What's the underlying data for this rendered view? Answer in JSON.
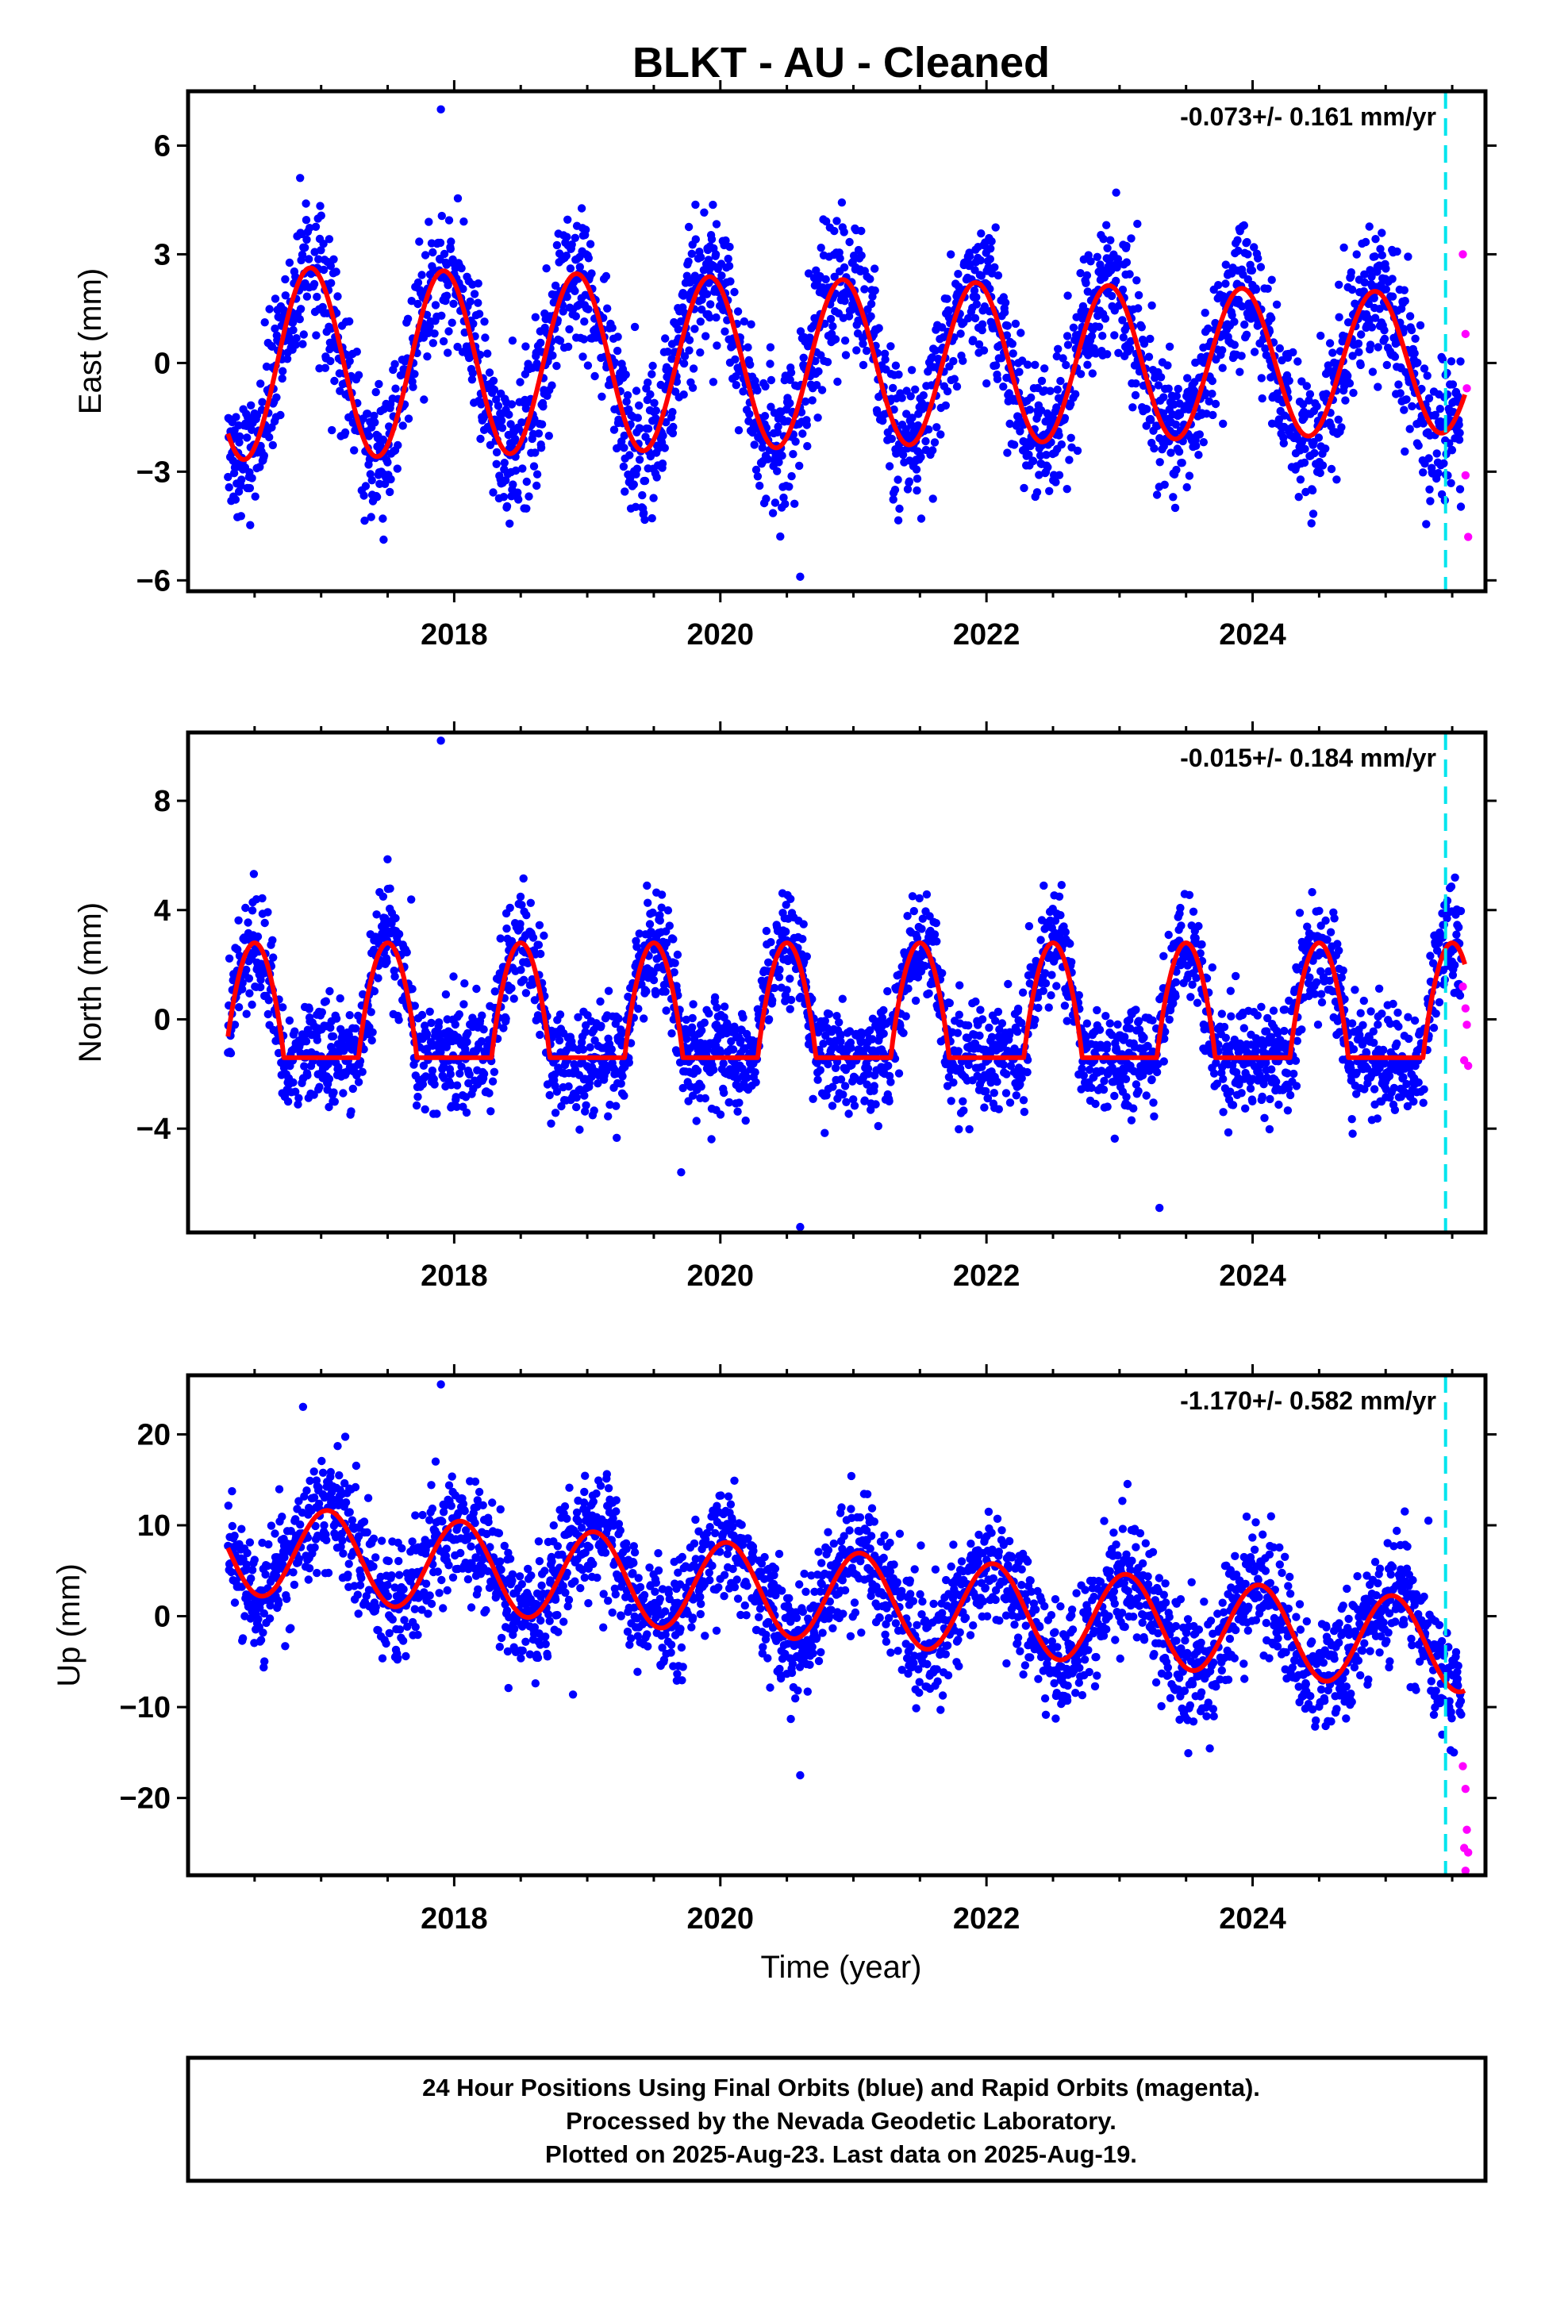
{
  "figure": {
    "title": "BLKT  - AU - Cleaned",
    "xlabel": "Time (year)",
    "footer": [
      "24 Hour Positions Using Final Orbits (blue) and Rapid Orbits (magenta).",
      "Processed by the Nevada Geodetic Laboratory.",
      "Plotted on 2025-Aug-23. Last data on 2025-Aug-19."
    ],
    "colors": {
      "final": "#0000ff",
      "rapid": "#ff00ff",
      "model": "#ff0000",
      "divider": "#00e5ee",
      "frame": "#000000"
    },
    "divider_x": 2025.45
  },
  "chart_data": [
    {
      "type": "scatter",
      "ylabel": "East (mm)",
      "rate_label": "-0.073+/- 0.161 mm/yr",
      "xlim": [
        2016.0,
        2025.75
      ],
      "ylim": [
        -6.3,
        7.5
      ],
      "xticks": [
        2018,
        2020,
        2022,
        2024
      ],
      "yticks": [
        -6,
        -3,
        0,
        3,
        6
      ],
      "yticklabels": [
        "−6",
        "−3",
        "0",
        "3",
        "6"
      ],
      "series": [
        {
          "kind": "final",
          "x_range": [
            2016.3,
            2025.57
          ],
          "amplitude": 2.8,
          "peak_phase": 0.92,
          "noise": 1.05,
          "outliers_y": [
            7.0,
            -5.9
          ]
        },
        {
          "kind": "model",
          "x_range": [
            2016.3,
            2025.6
          ],
          "amplitude": 2.7,
          "peak_phase": 0.92
        },
        {
          "kind": "rapid",
          "x": [
            2025.58,
            2025.6,
            2025.61,
            2025.6,
            2025.62
          ],
          "y": [
            3.0,
            0.8,
            -0.7,
            -3.1,
            -4.8
          ]
        }
      ]
    },
    {
      "type": "scatter",
      "ylabel": "North (mm)",
      "rate_label": "-0.015+/- 0.184 mm/yr",
      "xlim": [
        2016.0,
        2025.75
      ],
      "ylim": [
        -7.8,
        10.5
      ],
      "xticks": [
        2018,
        2020,
        2022,
        2024
      ],
      "yticks": [
        -4,
        0,
        4,
        8
      ],
      "yticklabels": [
        "−4",
        "0",
        "4",
        "8"
      ],
      "series": [
        {
          "kind": "final",
          "x_range": [
            2016.3,
            2025.57
          ],
          "amplitude": 2.2,
          "peak_phase": 0.5,
          "noise": 1.05,
          "outliers_y": [
            10.2,
            -7.6,
            -6.9
          ]
        },
        {
          "kind": "model",
          "x_range": [
            2016.3,
            2025.6
          ],
          "low": -1.4,
          "high": 2.8,
          "peak_phase": 0.5
        },
        {
          "kind": "rapid",
          "x": [
            2025.58,
            2025.6,
            2025.61,
            2025.59,
            2025.62
          ],
          "y": [
            1.2,
            0.4,
            -0.2,
            -1.5,
            -1.7
          ]
        }
      ]
    },
    {
      "type": "scatter",
      "ylabel": "Up (mm)",
      "rate_label": "-1.170+/- 0.582 mm/yr",
      "xlim": [
        2016.0,
        2025.75
      ],
      "ylim": [
        -28.5,
        26.5
      ],
      "xticks": [
        2018,
        2020,
        2022,
        2024
      ],
      "yticks": [
        -20,
        -10,
        0,
        10,
        20
      ],
      "yticklabels": [
        "−20",
        "−10",
        "0",
        "10",
        "20"
      ],
      "series": [
        {
          "kind": "final",
          "x_range": [
            2016.3,
            2025.57
          ],
          "amplitude": 5.0,
          "peak_phase": 0.05,
          "noise": 3.5,
          "outliers_y": [
            25.5,
            -17.5
          ]
        },
        {
          "kind": "model",
          "x_range": [
            2016.3,
            2025.6
          ],
          "start": 7.5,
          "slope": -1.17,
          "amplitude": 5.0,
          "peak_phase": 0.05
        },
        {
          "kind": "rapid",
          "x": [
            2025.58,
            2025.6,
            2025.61,
            2025.59,
            2025.62,
            2025.6
          ],
          "y": [
            -16.5,
            -19.0,
            -23.5,
            -25.5,
            -26.0,
            -28.0
          ]
        }
      ]
    }
  ]
}
